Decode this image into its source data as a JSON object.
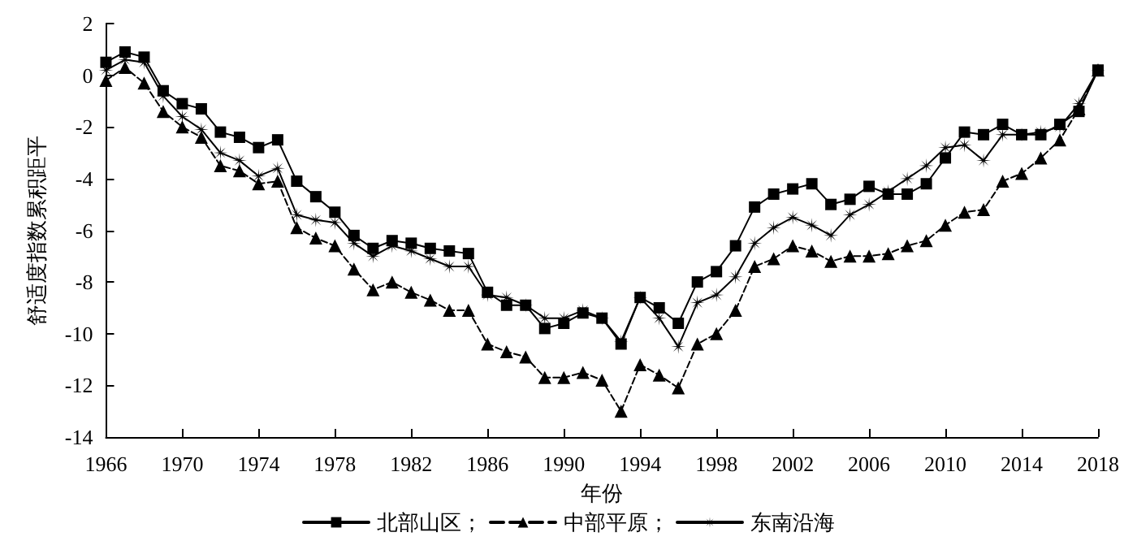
{
  "chart_data": {
    "type": "line",
    "xlabel": "年份",
    "ylabel": "舒适度指数累积距平",
    "x": [
      1966,
      1967,
      1968,
      1969,
      1970,
      1971,
      1972,
      1973,
      1974,
      1975,
      1976,
      1977,
      1978,
      1979,
      1980,
      1981,
      1982,
      1983,
      1984,
      1985,
      1986,
      1987,
      1988,
      1989,
      1990,
      1991,
      1992,
      1993,
      1994,
      1995,
      1996,
      1997,
      1998,
      1999,
      2000,
      2001,
      2002,
      2003,
      2004,
      2005,
      2006,
      2007,
      2008,
      2009,
      2010,
      2011,
      2012,
      2013,
      2014,
      2015,
      2016,
      2017,
      2018
    ],
    "series": [
      {
        "name": "北部山区；",
        "color": "#000000",
        "marker": "square",
        "line_style": "solid",
        "values": [
          0.5,
          0.9,
          0.7,
          -0.6,
          -1.1,
          -1.3,
          -2.2,
          -2.4,
          -2.8,
          -2.5,
          -4.1,
          -4.7,
          -5.3,
          -6.2,
          -6.7,
          -6.4,
          -6.5,
          -6.7,
          -6.8,
          -6.9,
          -8.4,
          -8.9,
          -8.9,
          -9.8,
          -9.6,
          -9.2,
          -9.4,
          -10.4,
          -8.6,
          -9.0,
          -9.6,
          -8.0,
          -7.6,
          -6.6,
          -5.1,
          -4.6,
          -4.4,
          -4.2,
          -5.0,
          -4.8,
          -4.3,
          -4.6,
          -4.6,
          -4.2,
          -3.2,
          -2.2,
          -2.3,
          -1.9,
          -2.3,
          -2.3,
          -1.9,
          -1.4,
          0.2
        ]
      },
      {
        "name": "中部平原；",
        "color": "#000000",
        "marker": "triangle",
        "line_style": "dashed",
        "values": [
          -0.2,
          0.3,
          -0.3,
          -1.4,
          -2.0,
          -2.4,
          -3.5,
          -3.7,
          -4.2,
          -4.1,
          -5.9,
          -6.3,
          -6.6,
          -7.5,
          -8.3,
          -8.0,
          -8.4,
          -8.7,
          -9.1,
          -9.1,
          -10.4,
          -10.7,
          -10.9,
          -11.7,
          -11.7,
          -11.5,
          -11.8,
          -13.0,
          -11.2,
          -11.6,
          -12.1,
          -10.4,
          -10.0,
          -9.1,
          -7.4,
          -7.1,
          -6.6,
          -6.8,
          -7.2,
          -7.0,
          -7.0,
          -6.9,
          -6.6,
          -6.4,
          -5.8,
          -5.3,
          -5.2,
          -4.1,
          -3.8,
          -3.2,
          -2.5,
          -1.3,
          0.2
        ]
      },
      {
        "name": "东南沿海",
        "color": "#000000",
        "marker": "star",
        "line_style": "solid",
        "values": [
          0.2,
          0.6,
          0.5,
          -0.8,
          -1.6,
          -2.1,
          -3.0,
          -3.3,
          -3.9,
          -3.6,
          -5.4,
          -5.6,
          -5.7,
          -6.5,
          -7.0,
          -6.6,
          -6.8,
          -7.1,
          -7.4,
          -7.4,
          -8.5,
          -8.6,
          -8.9,
          -9.4,
          -9.4,
          -9.1,
          -9.4,
          -10.3,
          -8.6,
          -9.4,
          -10.5,
          -8.8,
          -8.5,
          -7.8,
          -6.5,
          -5.9,
          -5.5,
          -5.8,
          -6.2,
          -5.4,
          -5.0,
          -4.5,
          -4.0,
          -3.5,
          -2.8,
          -2.7,
          -3.3,
          -2.3,
          -2.3,
          -2.2,
          -2.0,
          -1.1,
          0.2
        ]
      }
    ],
    "xlim": [
      1966,
      2018
    ],
    "xticks": [
      1966,
      1970,
      1974,
      1978,
      1982,
      1986,
      1990,
      1994,
      1998,
      2002,
      2006,
      2010,
      2014,
      2018
    ],
    "ylim": [
      -14,
      2
    ],
    "yticks": [
      -14,
      -12,
      -10,
      -8,
      -6,
      -4,
      -2,
      0,
      2
    ],
    "grid": false,
    "legend": "bottom"
  }
}
